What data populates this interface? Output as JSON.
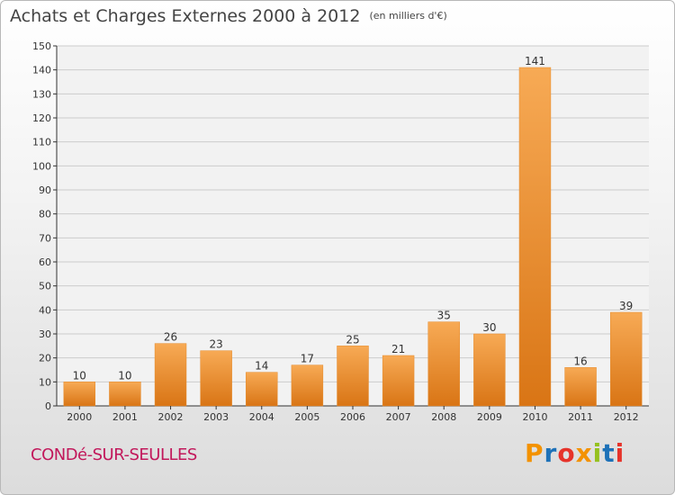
{
  "header": {
    "title": "Achats et Charges Externes 2000 à 2012",
    "unit": "(en milliers d'€)"
  },
  "footer": {
    "commune": "CONDé-SUR-SEULLES",
    "logo": [
      "P",
      "r",
      "o",
      "x",
      "i",
      "t",
      "i"
    ],
    "logo_colors": [
      "#f39200",
      "#1d71b8",
      "#e6332a",
      "#f39200",
      "#95c11f",
      "#1d71b8",
      "#e6332a"
    ]
  },
  "colors": {
    "bar": "#f0902f",
    "bar_light": "#f7aa55",
    "bar_dark": "#d97515",
    "grid": "#cccccc",
    "axis": "#333333"
  },
  "chart_data": {
    "type": "bar",
    "title": "Achats et Charges Externes 2000 à 2012",
    "categories": [
      "2000",
      "2001",
      "2002",
      "2003",
      "2004",
      "2005",
      "2006",
      "2007",
      "2008",
      "2009",
      "2010",
      "2011",
      "2012"
    ],
    "values": [
      10,
      10,
      26,
      23,
      14,
      17,
      25,
      21,
      35,
      30,
      141,
      16,
      39
    ],
    "ylim": [
      0,
      150
    ],
    "yticks": [
      0,
      10,
      20,
      30,
      40,
      50,
      60,
      70,
      80,
      90,
      100,
      110,
      120,
      130,
      140,
      150
    ],
    "grid": true,
    "xlabel": "",
    "ylabel": ""
  }
}
